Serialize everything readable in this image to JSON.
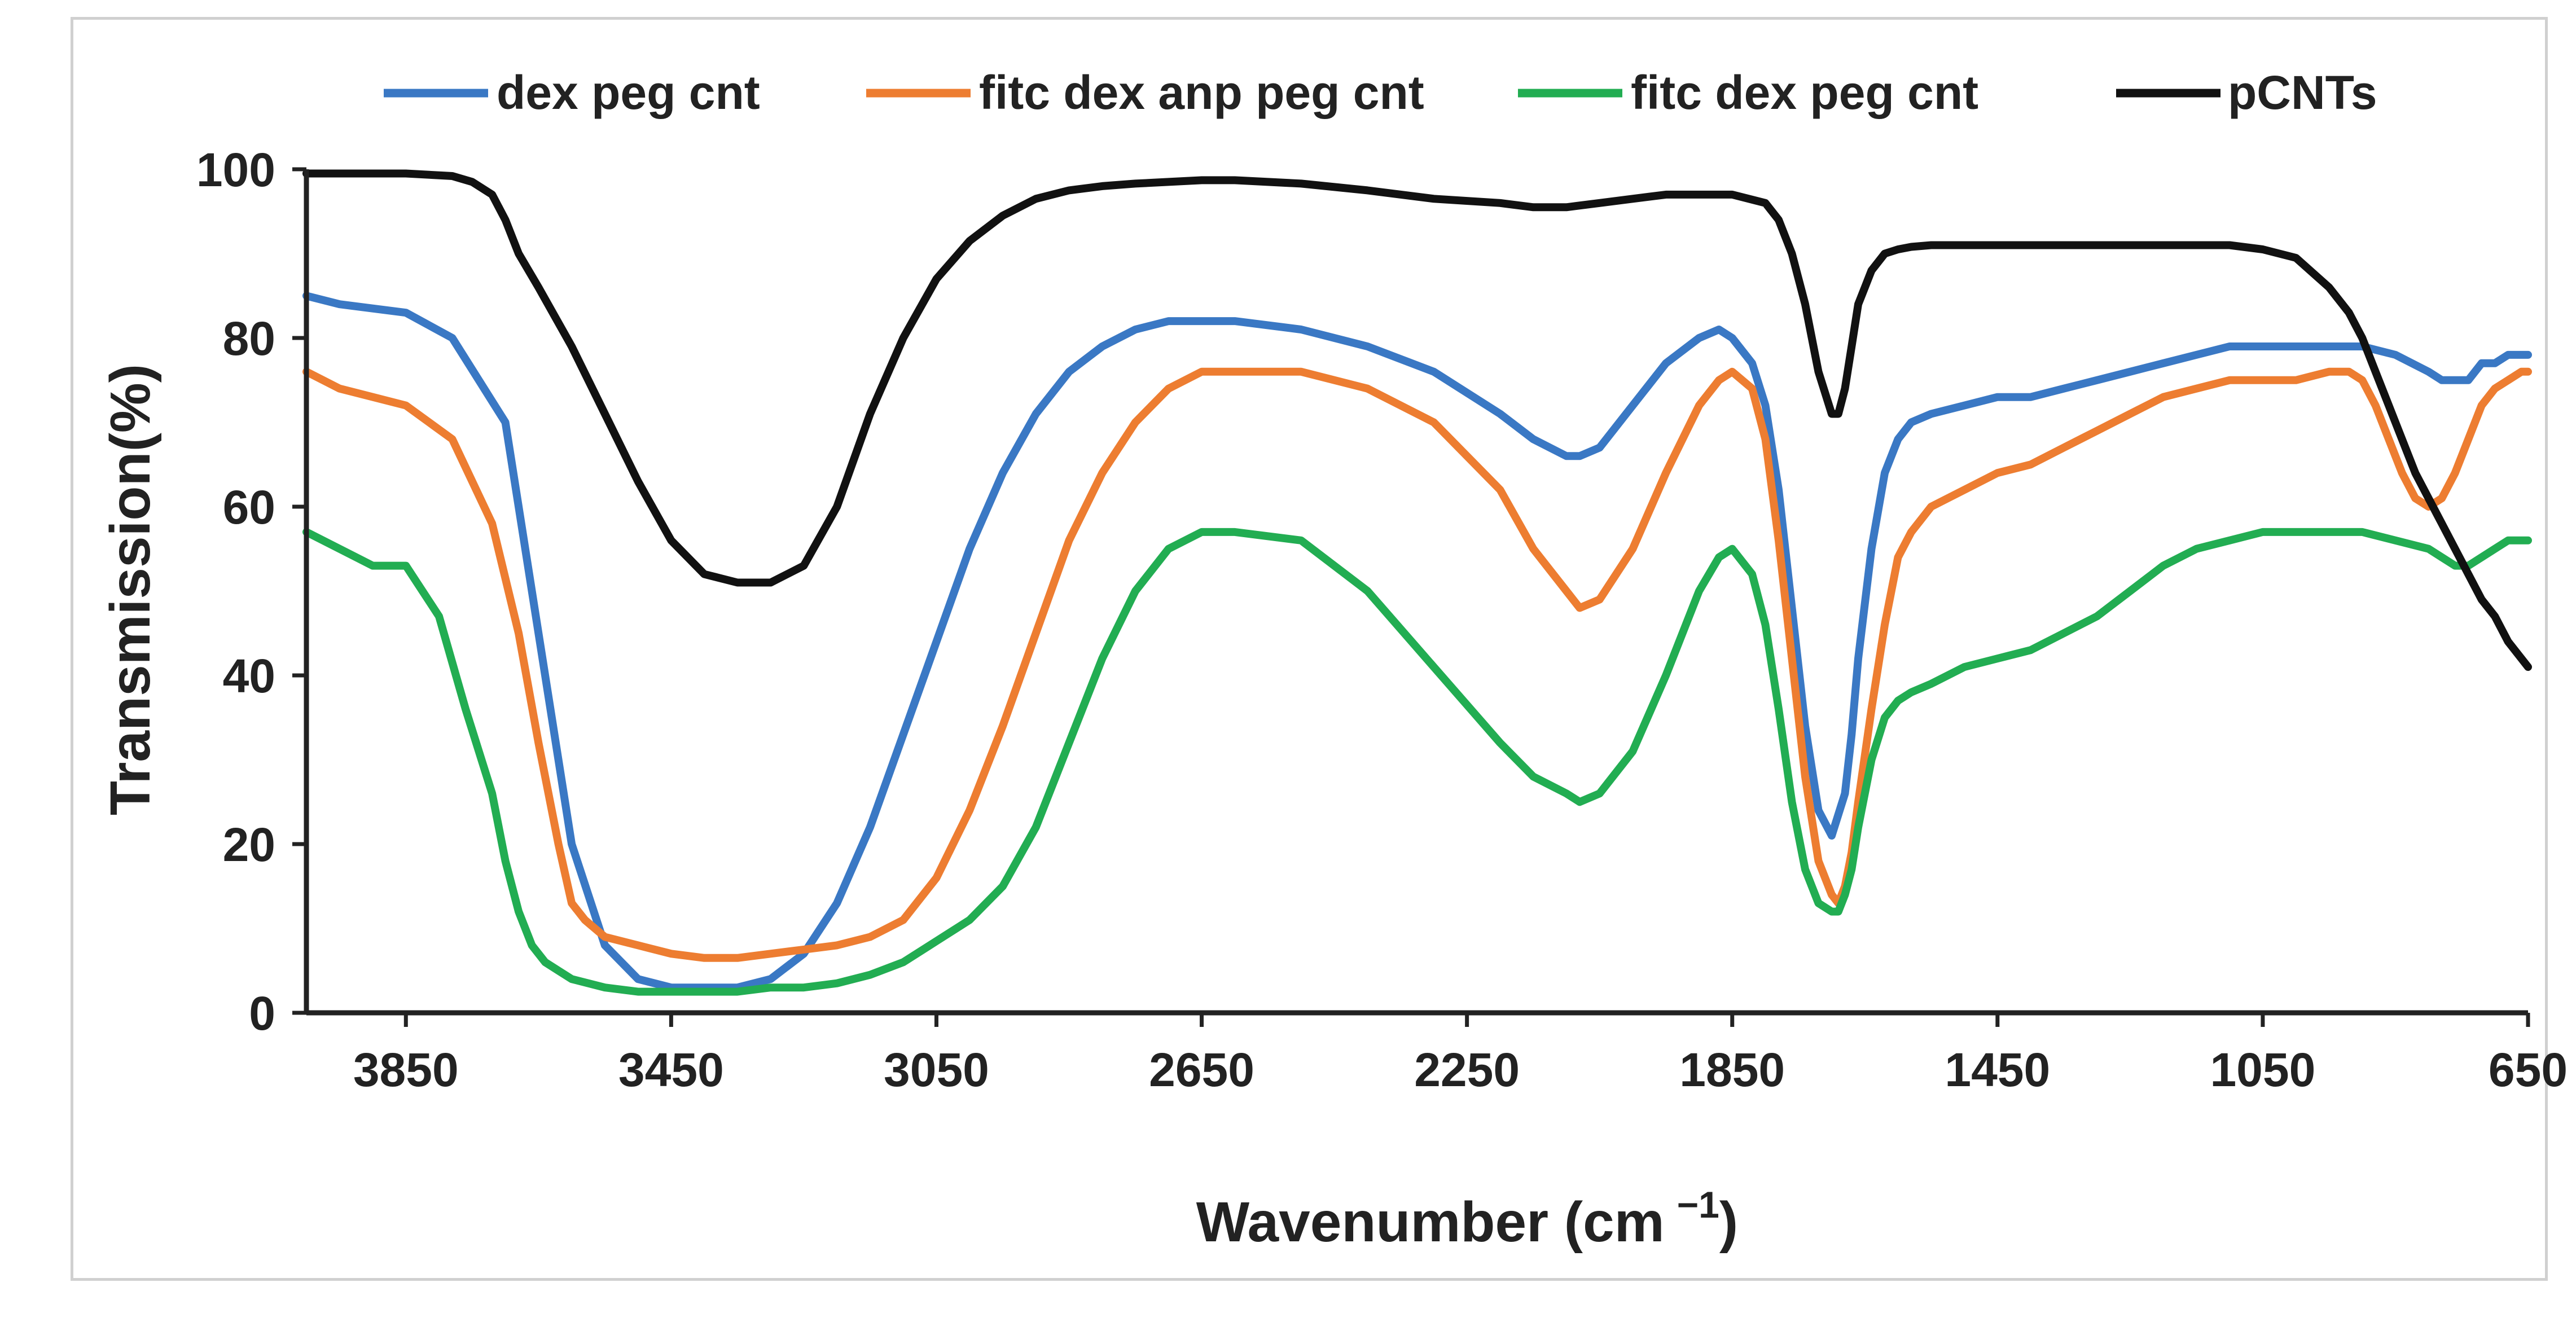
{
  "chart_data": {
    "type": "line",
    "title": "",
    "xlabel": "Wavenumber (cm",
    "xlabel_sup": "−1",
    "xlabel_close": ")",
    "ylabel": "Transmission(%)",
    "xlim": [
      4000,
      650
    ],
    "x_reversed": true,
    "ylim": [
      0,
      100
    ],
    "xticks": [
      3850,
      3450,
      3050,
      2650,
      2250,
      1850,
      1450,
      1050,
      650
    ],
    "yticks": [
      0,
      20,
      40,
      60,
      80,
      100
    ],
    "grid": false,
    "legend_position": "top",
    "series": [
      {
        "name": "dex peg cnt",
        "color": "#3a78c4",
        "x": [
          4000,
          3950,
          3850,
          3780,
          3700,
          3650,
          3600,
          3550,
          3500,
          3450,
          3400,
          3350,
          3300,
          3250,
          3200,
          3150,
          3100,
          3050,
          3000,
          2950,
          2900,
          2850,
          2800,
          2750,
          2700,
          2650,
          2600,
          2500,
          2400,
          2300,
          2200,
          2150,
          2100,
          2080,
          2050,
          2000,
          1950,
          1900,
          1870,
          1850,
          1820,
          1800,
          1780,
          1760,
          1740,
          1720,
          1700,
          1680,
          1670,
          1660,
          1640,
          1620,
          1600,
          1580,
          1550,
          1500,
          1450,
          1400,
          1350,
          1300,
          1250,
          1200,
          1150,
          1100,
          1050,
          1000,
          950,
          900,
          850,
          800,
          780,
          760,
          740,
          720,
          700,
          680,
          660,
          650
        ],
        "y": [
          85,
          84,
          83,
          80,
          70,
          45,
          20,
          8,
          4,
          3,
          3,
          3,
          4,
          7,
          13,
          22,
          33,
          44,
          55,
          64,
          71,
          76,
          79,
          81,
          82,
          82,
          82,
          81,
          79,
          76,
          71,
          68,
          66,
          66,
          67,
          72,
          77,
          80,
          81,
          80,
          77,
          72,
          62,
          48,
          34,
          24,
          21,
          26,
          33,
          42,
          55,
          64,
          68,
          70,
          71,
          72,
          73,
          73,
          74,
          75,
          76,
          77,
          78,
          79,
          79,
          79,
          79,
          79,
          78,
          76,
          75,
          75,
          75,
          77,
          77,
          78,
          78,
          78
        ]
      },
      {
        "name": "fitc dex anp peg cnt",
        "color": "#ed7d31",
        "x": [
          4000,
          3950,
          3850,
          3780,
          3720,
          3680,
          3650,
          3620,
          3600,
          3580,
          3550,
          3500,
          3450,
          3400,
          3350,
          3300,
          3250,
          3200,
          3150,
          3100,
          3050,
          3000,
          2950,
          2900,
          2850,
          2800,
          2750,
          2700,
          2650,
          2600,
          2500,
          2400,
          2300,
          2200,
          2150,
          2100,
          2080,
          2050,
          2000,
          1950,
          1900,
          1870,
          1850,
          1820,
          1800,
          1780,
          1760,
          1740,
          1720,
          1700,
          1690,
          1680,
          1670,
          1660,
          1640,
          1620,
          1600,
          1580,
          1550,
          1500,
          1450,
          1400,
          1350,
          1300,
          1250,
          1200,
          1150,
          1100,
          1050,
          1000,
          950,
          920,
          900,
          880,
          860,
          840,
          820,
          800,
          780,
          760,
          740,
          720,
          700,
          680,
          660,
          650
        ],
        "y": [
          76,
          74,
          72,
          68,
          58,
          45,
          32,
          20,
          13,
          11,
          9,
          8,
          7,
          6.5,
          6.5,
          7,
          7.5,
          8,
          9,
          11,
          16,
          24,
          34,
          45,
          56,
          64,
          70,
          74,
          76,
          76,
          76,
          74,
          70,
          62,
          55,
          50,
          48,
          49,
          55,
          64,
          72,
          75,
          76,
          74,
          68,
          56,
          42,
          28,
          18,
          14,
          13,
          15,
          19,
          25,
          36,
          46,
          54,
          57,
          60,
          62,
          64,
          65,
          67,
          69,
          71,
          73,
          74,
          75,
          75,
          75,
          76,
          76,
          75,
          72,
          68,
          64,
          61,
          60,
          61,
          64,
          68,
          72,
          74,
          75,
          76,
          76
        ]
      },
      {
        "name": "fitc dex peg cnt",
        "color": "#22ad52",
        "x": [
          4000,
          3950,
          3900,
          3850,
          3800,
          3760,
          3720,
          3700,
          3680,
          3660,
          3640,
          3620,
          3600,
          3550,
          3500,
          3450,
          3400,
          3350,
          3300,
          3250,
          3200,
          3150,
          3100,
          3050,
          3000,
          2950,
          2900,
          2850,
          2800,
          2750,
          2700,
          2650,
          2600,
          2500,
          2400,
          2300,
          2200,
          2150,
          2100,
          2080,
          2050,
          2000,
          1950,
          1900,
          1870,
          1850,
          1820,
          1800,
          1780,
          1760,
          1740,
          1720,
          1700,
          1690,
          1680,
          1670,
          1660,
          1640,
          1620,
          1600,
          1580,
          1550,
          1500,
          1450,
          1400,
          1350,
          1300,
          1250,
          1200,
          1150,
          1100,
          1050,
          1000,
          950,
          900,
          850,
          800,
          780,
          760,
          740,
          720,
          700,
          680,
          660,
          650
        ],
        "y": [
          57,
          55,
          53,
          53,
          47,
          36,
          26,
          18,
          12,
          8,
          6,
          5,
          4,
          3,
          2.5,
          2.5,
          2.5,
          2.5,
          3,
          3,
          3.5,
          4.5,
          6,
          8.5,
          11,
          15,
          22,
          32,
          42,
          50,
          55,
          57,
          57,
          56,
          50,
          41,
          32,
          28,
          26,
          25,
          26,
          31,
          40,
          50,
          54,
          55,
          52,
          46,
          36,
          25,
          17,
          13,
          12,
          12,
          14,
          17,
          22,
          30,
          35,
          37,
          38,
          39,
          41,
          42,
          43,
          45,
          47,
          50,
          53,
          55,
          56,
          57,
          57,
          57,
          57,
          56,
          55,
          54,
          53,
          53,
          54,
          55,
          56,
          56,
          56
        ]
      },
      {
        "name": "pCNTs",
        "color": "#111111",
        "x": [
          4000,
          3950,
          3850,
          3780,
          3750,
          3720,
          3700,
          3680,
          3650,
          3600,
          3550,
          3500,
          3450,
          3400,
          3350,
          3300,
          3250,
          3200,
          3150,
          3100,
          3050,
          3000,
          2950,
          2900,
          2850,
          2800,
          2750,
          2700,
          2650,
          2600,
          2500,
          2400,
          2300,
          2200,
          2150,
          2100,
          2050,
          2000,
          1950,
          1900,
          1850,
          1800,
          1780,
          1760,
          1740,
          1720,
          1700,
          1690,
          1680,
          1670,
          1660,
          1650,
          1640,
          1620,
          1600,
          1580,
          1550,
          1500,
          1450,
          1400,
          1350,
          1300,
          1250,
          1200,
          1150,
          1100,
          1050,
          1000,
          950,
          920,
          900,
          880,
          860,
          840,
          820,
          800,
          780,
          760,
          740,
          720,
          700,
          680,
          660,
          650
        ],
        "y": [
          99.5,
          99.5,
          99.5,
          99.2,
          98.5,
          97,
          94,
          90,
          86,
          79,
          71,
          63,
          56,
          52,
          51,
          51,
          53,
          60,
          71,
          80,
          87,
          91.5,
          94.5,
          96.5,
          97.5,
          98,
          98.3,
          98.5,
          98.7,
          98.7,
          98.3,
          97.5,
          96.5,
          96,
          95.5,
          95.5,
          96,
          96.5,
          97,
          97,
          97,
          96,
          94,
          90,
          84,
          76,
          71,
          71,
          74,
          79,
          84,
          86,
          88,
          90,
          90.5,
          90.8,
          91,
          91,
          91,
          91,
          91,
          91,
          91,
          91,
          91,
          91,
          90.5,
          89.5,
          86,
          83,
          80,
          76,
          72,
          68,
          64,
          61,
          58,
          55,
          52,
          49,
          47,
          44,
          42,
          41
        ]
      }
    ]
  }
}
